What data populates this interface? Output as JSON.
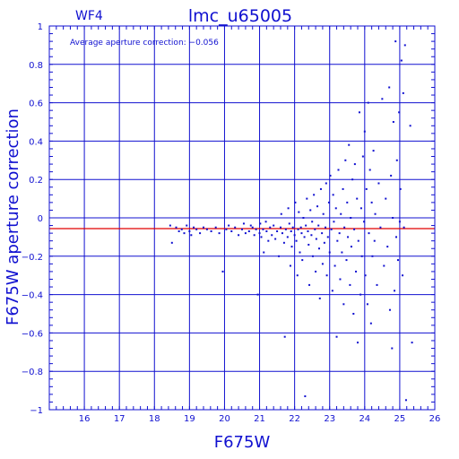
{
  "chart_data": {
    "type": "scatter",
    "title": "lmc_u65005",
    "chip_label": "WF4",
    "annotation": "Average aperture correction: −0.056",
    "xlabel": "F675W",
    "ylabel": "F675W aperture correction",
    "xlim": [
      15,
      26
    ],
    "ylim": [
      -1,
      1
    ],
    "xticks": [
      16,
      17,
      18,
      19,
      20,
      21,
      22,
      23,
      24,
      25,
      26
    ],
    "yticks": [
      -1,
      -0.8,
      -0.6,
      -0.4,
      -0.2,
      0,
      0.2,
      0.4,
      0.6,
      0.8,
      1
    ],
    "ytick_labels": [
      "−1",
      "−0.8",
      "−0.6",
      "−0.4",
      "−0.2",
      "0",
      "0.2",
      "0.4",
      "0.6",
      "0.8",
      "1"
    ],
    "grid": true,
    "reference_line": {
      "y": -0.056,
      "color": "#e00000"
    },
    "colors": {
      "axis": "#1010d0",
      "points": "#1010d0",
      "reference": "#e00000"
    },
    "series": [
      {
        "points": [
          [
            18.45,
            -0.04
          ],
          [
            18.5,
            -0.13
          ],
          [
            18.62,
            -0.05
          ],
          [
            18.7,
            -0.07
          ],
          [
            18.78,
            -0.06
          ],
          [
            18.85,
            -0.08
          ],
          [
            18.92,
            -0.04
          ],
          [
            19.0,
            -0.07
          ],
          [
            19.05,
            -0.09
          ],
          [
            19.12,
            -0.05
          ],
          [
            19.2,
            -0.06
          ],
          [
            19.3,
            -0.08
          ],
          [
            19.4,
            -0.05
          ],
          [
            19.5,
            -0.06
          ],
          [
            19.62,
            -0.07
          ],
          [
            19.75,
            -0.05
          ],
          [
            19.85,
            -0.08
          ],
          [
            19.95,
            -0.28
          ],
          [
            20.05,
            -0.06
          ],
          [
            20.12,
            -0.04
          ],
          [
            20.2,
            -0.07
          ],
          [
            20.3,
            -0.05
          ],
          [
            20.4,
            -0.09
          ],
          [
            20.5,
            -0.06
          ],
          [
            20.55,
            -0.03
          ],
          [
            20.6,
            -0.08
          ],
          [
            20.7,
            -0.07
          ],
          [
            20.75,
            -0.04
          ],
          [
            20.8,
            -0.05
          ],
          [
            20.85,
            -0.09
          ],
          [
            20.9,
            -0.06
          ],
          [
            20.95,
            -0.4
          ],
          [
            21.0,
            -0.08
          ],
          [
            21.02,
            -0.03
          ],
          [
            21.05,
            -0.1
          ],
          [
            21.1,
            -0.06
          ],
          [
            21.12,
            -0.18
          ],
          [
            21.18,
            -0.02
          ],
          [
            21.2,
            -0.07
          ],
          [
            21.25,
            -0.12
          ],
          [
            21.3,
            -0.05
          ],
          [
            21.35,
            -0.09
          ],
          [
            21.4,
            -0.04
          ],
          [
            21.45,
            -0.11
          ],
          [
            21.5,
            -0.07
          ],
          [
            21.55,
            -0.2
          ],
          [
            21.6,
            -0.05
          ],
          [
            21.62,
            0.02
          ],
          [
            21.65,
            -0.08
          ],
          [
            21.7,
            -0.13
          ],
          [
            21.72,
            -0.62
          ],
          [
            21.75,
            -0.06
          ],
          [
            21.8,
            -0.1
          ],
          [
            21.82,
            0.05
          ],
          [
            21.85,
            -0.03
          ],
          [
            21.88,
            -0.25
          ],
          [
            21.9,
            -0.07
          ],
          [
            21.92,
            -0.15
          ],
          [
            21.95,
            -0.05
          ],
          [
            22.0,
            -0.09
          ],
          [
            22.02,
            0.08
          ],
          [
            22.05,
            -0.12
          ],
          [
            22.08,
            -0.3
          ],
          [
            22.1,
            -0.06
          ],
          [
            22.12,
            0.03
          ],
          [
            22.15,
            -0.18
          ],
          [
            22.18,
            -0.05
          ],
          [
            22.2,
            -0.08
          ],
          [
            22.22,
            -0.22
          ],
          [
            22.25,
            0.0
          ],
          [
            22.28,
            -0.1
          ],
          [
            22.3,
            -0.93
          ],
          [
            22.32,
            -0.04
          ],
          [
            22.35,
            0.1
          ],
          [
            22.38,
            -0.07
          ],
          [
            22.4,
            -0.14
          ],
          [
            22.42,
            -0.35
          ],
          [
            22.45,
            0.04
          ],
          [
            22.48,
            -0.09
          ],
          [
            22.5,
            -0.02
          ],
          [
            22.52,
            -0.2
          ],
          [
            22.55,
            0.12
          ],
          [
            22.58,
            -0.06
          ],
          [
            22.6,
            -0.28
          ],
          [
            22.62,
            -0.11
          ],
          [
            22.65,
            0.06
          ],
          [
            22.68,
            -0.04
          ],
          [
            22.7,
            -0.16
          ],
          [
            22.72,
            -0.42
          ],
          [
            22.75,
            0.15
          ],
          [
            22.78,
            -0.08
          ],
          [
            22.8,
            -0.24
          ],
          [
            22.82,
            0.02
          ],
          [
            22.85,
            -0.13
          ],
          [
            22.88,
            -0.05
          ],
          [
            22.9,
            0.18
          ],
          [
            22.92,
            -0.3
          ],
          [
            22.95,
            -0.1
          ],
          [
            22.98,
            0.08
          ],
          [
            23.0,
            -0.18
          ],
          [
            23.02,
            0.22
          ],
          [
            23.05,
            -0.06
          ],
          [
            23.08,
            -0.38
          ],
          [
            23.1,
            0.12
          ],
          [
            23.12,
            -0.02
          ],
          [
            23.15,
            -0.25
          ],
          [
            23.18,
            0.05
          ],
          [
            23.2,
            -0.62
          ],
          [
            23.22,
            -0.12
          ],
          [
            23.25,
            0.25
          ],
          [
            23.28,
            -0.08
          ],
          [
            23.3,
            -0.32
          ],
          [
            23.32,
            0.02
          ],
          [
            23.35,
            -0.18
          ],
          [
            23.38,
            0.15
          ],
          [
            23.4,
            -0.45
          ],
          [
            23.42,
            -0.05
          ],
          [
            23.45,
            0.3
          ],
          [
            23.48,
            -0.22
          ],
          [
            23.5,
            0.08
          ],
          [
            23.52,
            -0.1
          ],
          [
            23.55,
            0.38
          ],
          [
            23.58,
            -0.35
          ],
          [
            23.6,
            0.0
          ],
          [
            23.62,
            -0.15
          ],
          [
            23.65,
            0.2
          ],
          [
            23.68,
            -0.5
          ],
          [
            23.7,
            -0.06
          ],
          [
            23.72,
            0.28
          ],
          [
            23.75,
            -0.28
          ],
          [
            23.78,
            0.1
          ],
          [
            23.8,
            -0.65
          ],
          [
            23.82,
            -0.12
          ],
          [
            23.85,
            0.55
          ],
          [
            23.88,
            -0.4
          ],
          [
            23.9,
            0.05
          ],
          [
            23.92,
            -0.2
          ],
          [
            23.95,
            0.32
          ],
          [
            23.98,
            -0.02
          ],
          [
            24.0,
            0.45
          ],
          [
            24.02,
            -0.3
          ],
          [
            24.05,
            0.15
          ],
          [
            24.08,
            -0.45
          ],
          [
            24.1,
            0.6
          ],
          [
            24.12,
            -0.08
          ],
          [
            24.15,
            0.25
          ],
          [
            24.18,
            -0.55
          ],
          [
            24.2,
            0.08
          ],
          [
            24.22,
            -0.2
          ],
          [
            24.25,
            0.35
          ],
          [
            24.28,
            -0.12
          ],
          [
            24.3,
            0.02
          ],
          [
            24.35,
            -0.35
          ],
          [
            24.4,
            0.18
          ],
          [
            24.45,
            -0.05
          ],
          [
            24.5,
            0.62
          ],
          [
            24.55,
            -0.25
          ],
          [
            24.6,
            0.1
          ],
          [
            24.65,
            -0.15
          ],
          [
            24.7,
            0.68
          ],
          [
            24.72,
            -0.48
          ],
          [
            24.75,
            0.22
          ],
          [
            24.78,
            -0.68
          ],
          [
            24.8,
            0.0
          ],
          [
            24.82,
            0.5
          ],
          [
            24.85,
            -0.38
          ],
          [
            24.88,
            0.92
          ],
          [
            24.9,
            -0.1
          ],
          [
            24.92,
            0.3
          ],
          [
            24.95,
            -0.22
          ],
          [
            24.98,
            0.55
          ],
          [
            25.0,
            -0.02
          ],
          [
            25.02,
            0.15
          ],
          [
            25.05,
            0.82
          ],
          [
            25.08,
            -0.3
          ],
          [
            25.1,
            0.65
          ],
          [
            25.12,
            -0.05
          ],
          [
            25.15,
            0.9
          ],
          [
            25.18,
            -0.95
          ],
          [
            25.3,
            0.48
          ],
          [
            25.35,
            -0.65
          ]
        ]
      }
    ]
  }
}
